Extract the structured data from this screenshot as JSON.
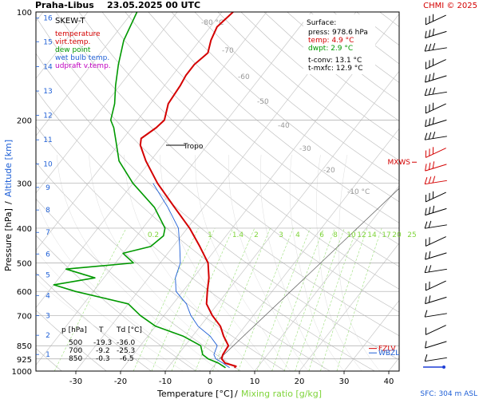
{
  "header": {
    "station": "Praha-Libus",
    "datetime": "23.05.2025 00 UTC",
    "credit": "CHMI © 2025"
  },
  "legend": {
    "title": "SKEW-T",
    "items": [
      {
        "label": "temperature",
        "color": "#d40000"
      },
      {
        "label": "virt.temp.",
        "color": "#d40000"
      },
      {
        "label": "dew point",
        "color": "#009900"
      },
      {
        "label": "wet bulb temp.",
        "color": "#1e5fd6"
      },
      {
        "label": "udpraft v.temp.",
        "color": "#c000c0"
      }
    ]
  },
  "surface": {
    "title": "Surface:",
    "press": "press: 978.6 hPa",
    "temp": "temp: 4.9 °C",
    "dwpt": "dwpt: 2.9 °C",
    "tconv": "t-conv: 13.1 °C",
    "tmxfc": "t-mxfc: 12.9 °C"
  },
  "table": {
    "header": [
      "p [hPa]",
      "T",
      "Td [°C]"
    ],
    "rows": [
      [
        "500",
        "-19.3",
        "-36.0"
      ],
      [
        "700",
        "-9.2",
        "-25.3"
      ],
      [
        "850",
        "-0.3",
        "-6.5"
      ]
    ]
  },
  "axes": {
    "xlabel_temp": "Temperature [°C]",
    "xlabel_sep": "/",
    "xlabel_mix": "Mixing ratio [g/kg]",
    "ylabel_p": "Pressure [hPa]",
    "ylabel_sep": "/",
    "ylabel_alt": "Altitude [km]"
  },
  "footer": {
    "sfc": "SFC: 304 m ASL"
  },
  "chart_data": {
    "type": "line",
    "title": "Praha-Libus 23.05.2025 00 UTC",
    "xlabel": "Temperature [°C] / Mixing ratio [g/kg]",
    "ylabel": "Pressure [hPa] / Altitude [km]",
    "x_range": [
      -35,
      40
    ],
    "y_range": [
      100,
      1000
    ],
    "y_scale": "log",
    "pressure_ticks": [
      100,
      200,
      300,
      400,
      500,
      600,
      700,
      850,
      925,
      1000
    ],
    "temperature_ticks": [
      -30,
      -20,
      -10,
      0,
      10,
      20,
      30,
      40
    ],
    "altitude_ticks_km": [
      {
        "km": "1",
        "p": 899
      },
      {
        "km": "2",
        "p": 795
      },
      {
        "km": "3",
        "p": 701
      },
      {
        "km": "4",
        "p": 616
      },
      {
        "km": "5",
        "p": 540
      },
      {
        "km": "6",
        "p": 472
      },
      {
        "km": "7",
        "p": 411
      },
      {
        "km": "8",
        "p": 356
      },
      {
        "km": "9",
        "p": 308
      },
      {
        "km": "10",
        "p": 265
      },
      {
        "km": "11",
        "p": 227
      },
      {
        "km": "12",
        "p": 194
      },
      {
        "km": "13",
        "p": 166
      },
      {
        "km": "14",
        "p": 142
      },
      {
        "km": "15",
        "p": 121
      },
      {
        "km": "16",
        "p": 104
      }
    ],
    "isotherm_labels": [
      {
        "t": -80,
        "label": "-80 °C"
      },
      {
        "t": -70,
        "label": "-70"
      },
      {
        "t": -60,
        "label": "-60"
      },
      {
        "t": -50,
        "label": "-50"
      },
      {
        "t": -40,
        "label": "-40"
      },
      {
        "t": -30,
        "label": "-30"
      },
      {
        "t": -20,
        "label": "-20"
      },
      {
        "t": -10,
        "label": "-10 °C"
      }
    ],
    "mixing_ratio_labels": [
      "0.2",
      "1",
      "1.4",
      "2",
      "3",
      "4",
      "6",
      "8",
      "10",
      "12",
      "14",
      "17",
      "20",
      "25"
    ],
    "series": [
      {
        "name": "temperature",
        "color": "#d40000",
        "points": [
          [
            978.6,
            4.9
          ],
          [
            970,
            5.0
          ],
          [
            950,
            2.0
          ],
          [
            925,
            0.5
          ],
          [
            900,
            0.0
          ],
          [
            850,
            -0.3
          ],
          [
            800,
            -3.0
          ],
          [
            750,
            -5.5
          ],
          [
            700,
            -9.2
          ],
          [
            650,
            -12.5
          ],
          [
            600,
            -14.5
          ],
          [
            550,
            -16.5
          ],
          [
            500,
            -19.3
          ],
          [
            450,
            -24.0
          ],
          [
            400,
            -29.5
          ],
          [
            350,
            -36.5
          ],
          [
            300,
            -44.5
          ],
          [
            260,
            -51.0
          ],
          [
            235,
            -55.0
          ],
          [
            225,
            -56.0
          ],
          [
            210,
            -54.5
          ],
          [
            200,
            -54.0
          ],
          [
            180,
            -56.0
          ],
          [
            160,
            -56.5
          ],
          [
            150,
            -57.0
          ],
          [
            140,
            -57.0
          ],
          [
            130,
            -56.0
          ],
          [
            120,
            -57.5
          ],
          [
            110,
            -58.5
          ],
          [
            100,
            -57.5
          ]
        ]
      },
      {
        "name": "dew point",
        "color": "#009900",
        "points": [
          [
            978.6,
            2.9
          ],
          [
            950,
            0.5
          ],
          [
            925,
            -2.5
          ],
          [
            900,
            -4.5
          ],
          [
            850,
            -6.5
          ],
          [
            800,
            -12.0
          ],
          [
            750,
            -20.0
          ],
          [
            700,
            -25.3
          ],
          [
            650,
            -30.0
          ],
          [
            600,
            -44.0
          ],
          [
            575,
            -50.0
          ],
          [
            550,
            -42.0
          ],
          [
            520,
            -50.0
          ],
          [
            500,
            -36.0
          ],
          [
            470,
            -40.0
          ],
          [
            450,
            -35.0
          ],
          [
            420,
            -34.0
          ],
          [
            400,
            -35.0
          ],
          [
            350,
            -41.0
          ],
          [
            300,
            -50.0
          ],
          [
            260,
            -57.0
          ],
          [
            230,
            -61.0
          ],
          [
            210,
            -64.0
          ],
          [
            200,
            -66.0
          ],
          [
            180,
            -68.0
          ],
          [
            160,
            -71.0
          ],
          [
            140,
            -74.0
          ],
          [
            120,
            -77.0
          ],
          [
            100,
            -79.0
          ]
        ]
      },
      {
        "name": "wet bulb temp.",
        "color": "#1e5fd6",
        "points": [
          [
            978.6,
            3.8
          ],
          [
            950,
            1.5
          ],
          [
            925,
            -0.8
          ],
          [
            900,
            -2.0
          ],
          [
            850,
            -2.8
          ],
          [
            800,
            -6.0
          ],
          [
            750,
            -10.5
          ],
          [
            700,
            -14.0
          ],
          [
            650,
            -17.0
          ],
          [
            600,
            -21.5
          ],
          [
            550,
            -24.0
          ],
          [
            500,
            -25.5
          ],
          [
            450,
            -28.5
          ],
          [
            400,
            -32.0
          ],
          [
            350,
            -38.0
          ],
          [
            300,
            -45.5
          ]
        ]
      }
    ],
    "markers": [
      {
        "label": "Tropo",
        "p": 235
      },
      {
        "label": "MXWS",
        "p": 262
      },
      {
        "label": "FZLV",
        "p": 865
      },
      {
        "label": "WBZL",
        "p": 890
      }
    ],
    "grid": true
  }
}
